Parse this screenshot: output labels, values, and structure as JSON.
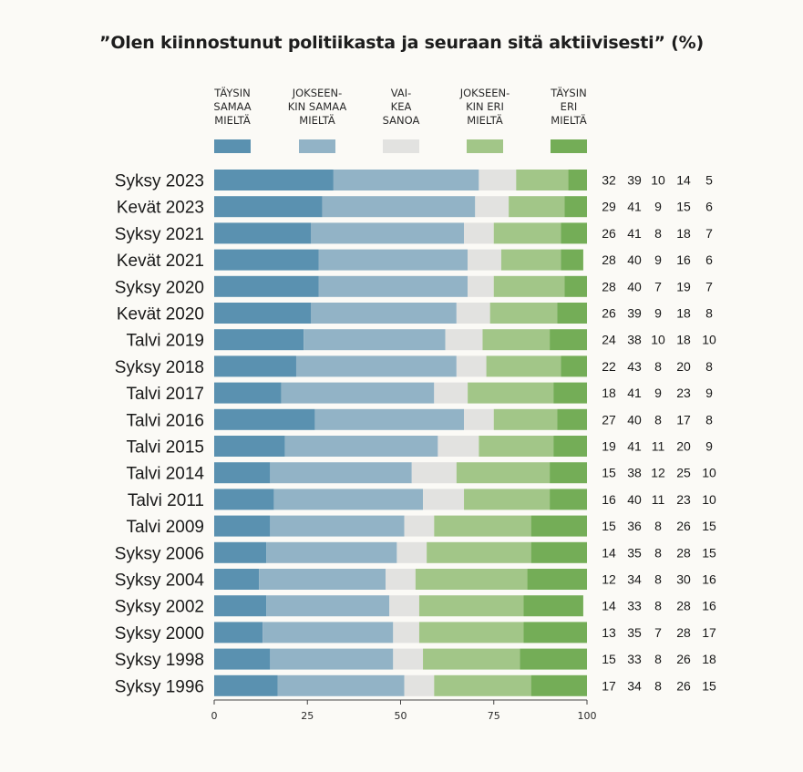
{
  "chart_data": {
    "type": "bar",
    "orientation": "horizontal",
    "stacked": true,
    "title": "”Olen kiinnostunut politiikasta ja seuraan sitä aktiivisesti” (%)",
    "categories": [
      "Syksy 2023",
      "Kevät 2023",
      "Syksy 2021",
      "Kevät 2021",
      "Syksy 2020",
      "Kevät 2020",
      "Talvi 2019",
      "Syksy 2018",
      "Talvi 2017",
      "Talvi 2016",
      "Talvi 2015",
      "Talvi 2014",
      "Talvi 2011",
      "Talvi 2009",
      "Syksy 2006",
      "Syksy 2004",
      "Syksy 2002",
      "Syksy 2000",
      "Syksy 1998",
      "Syksy 1996"
    ],
    "series": [
      {
        "name": "TÄYSIN SAMAA MIELTÄ",
        "color": "#5a91b0",
        "values": [
          32,
          29,
          26,
          28,
          28,
          26,
          24,
          22,
          18,
          27,
          19,
          15,
          16,
          15,
          14,
          12,
          14,
          13,
          15,
          17
        ]
      },
      {
        "name": "JOKSEEN-KIN SAMAA MIELTÄ",
        "color": "#92b3c6",
        "values": [
          39,
          41,
          41,
          40,
          40,
          39,
          38,
          43,
          41,
          40,
          41,
          38,
          40,
          36,
          35,
          34,
          33,
          35,
          33,
          34
        ]
      },
      {
        "name": "VAI-KEA SANOA",
        "color": "#e2e2e0",
        "values": [
          10,
          9,
          8,
          9,
          7,
          9,
          10,
          8,
          9,
          8,
          11,
          12,
          11,
          8,
          8,
          8,
          8,
          7,
          8,
          8
        ]
      },
      {
        "name": "JOKSEEN-KIN ERI MIELTÄ",
        "color": "#a2c688",
        "values": [
          14,
          15,
          18,
          16,
          19,
          18,
          18,
          20,
          23,
          17,
          20,
          25,
          23,
          26,
          28,
          30,
          28,
          28,
          26,
          26
        ]
      },
      {
        "name": "TÄYSIN ERI MIELTÄ",
        "color": "#74ad57",
        "values": [
          5,
          6,
          7,
          6,
          7,
          8,
          10,
          8,
          9,
          8,
          9,
          10,
          10,
          15,
          15,
          16,
          16,
          17,
          18,
          15
        ]
      }
    ],
    "legend": {
      "placement": "top",
      "labels": [
        "TÄYSIN\nSAMAA\nMIELTÄ",
        "JOKSEEN-\nKIN SAMAA\nMIELTÄ",
        "VAI-\nKEA\nSANOA",
        "JOKSEEN-\nKIN ERI\nMIELTÄ",
        "TÄYSIN\nERI\nMIELTÄ"
      ]
    },
    "xlim": [
      0,
      100
    ],
    "xticks": [
      0,
      25,
      50,
      75,
      100
    ],
    "grid": false
  }
}
